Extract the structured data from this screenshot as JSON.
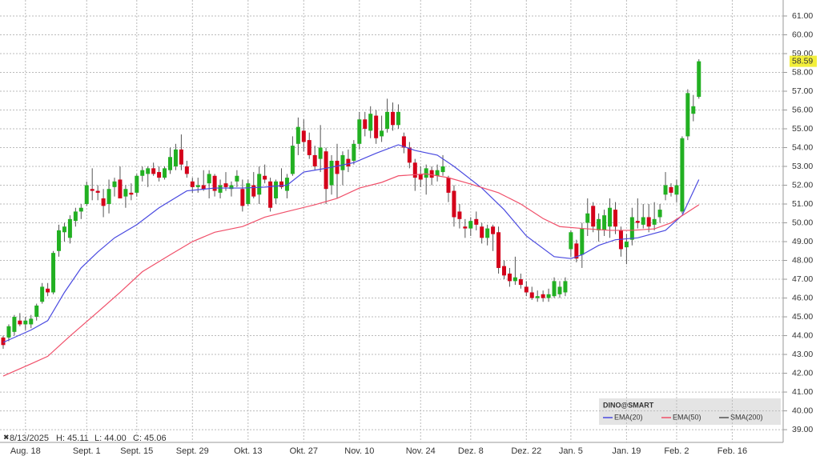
{
  "chart_data": {
    "type": "candlestick",
    "status": [
      "8/13/2025",
      "H: 45.11",
      "L: 44.00",
      "C: 45.06"
    ],
    "last_label": "58.59",
    "ylim": [
      38.45,
      61.85
    ],
    "yticks": [
      {
        "value": 39,
        "label": "39.00"
      },
      {
        "value": 40,
        "label": "40.00"
      },
      {
        "value": 41,
        "label": "41.00"
      },
      {
        "value": 42,
        "label": "42.00"
      },
      {
        "value": 43,
        "label": "43.00"
      },
      {
        "value": 44,
        "label": "44.00"
      },
      {
        "value": 45,
        "label": "45.00"
      },
      {
        "value": 46,
        "label": "46.00"
      },
      {
        "value": 47,
        "label": "47.00"
      },
      {
        "value": 48,
        "label": "48.00"
      },
      {
        "value": 49,
        "label": "49.00"
      },
      {
        "value": 50,
        "label": "50.00"
      },
      {
        "value": 51,
        "label": "51.00"
      },
      {
        "value": 52,
        "label": "52.00"
      },
      {
        "value": 53,
        "label": "53.00"
      },
      {
        "value": 54,
        "label": "54.00"
      },
      {
        "value": 55,
        "label": "55.00"
      },
      {
        "value": 56,
        "label": "56.00"
      },
      {
        "value": 57,
        "label": "57.00"
      },
      {
        "value": 58,
        "label": "58.00"
      },
      {
        "value": 59,
        "label": "59.00"
      },
      {
        "value": 60,
        "label": "60.00"
      },
      {
        "value": 61,
        "label": "61.00"
      }
    ],
    "xticks": [
      {
        "value": 4,
        "label": "Aug. 18"
      },
      {
        "value": 15,
        "label": "Sept. 1"
      },
      {
        "value": 24,
        "label": "Sept. 15"
      },
      {
        "value": 34,
        "label": "Sept. 29"
      },
      {
        "value": 44,
        "label": "Okt. 13"
      },
      {
        "value": 54,
        "label": "Okt. 27"
      },
      {
        "value": 64,
        "label": "Nov. 10"
      },
      {
        "value": 75,
        "label": "Nov. 24"
      },
      {
        "value": 84,
        "label": "Dez. 8"
      },
      {
        "value": 94,
        "label": "Dez. 22"
      },
      {
        "value": 102,
        "label": "Jan. 5"
      },
      {
        "value": 112,
        "label": "Jan. 19"
      },
      {
        "value": 121,
        "label": "Feb. 2"
      },
      {
        "value": 131,
        "label": "Feb. 16"
      }
    ],
    "grid": true,
    "up_color": "#22b022",
    "down_color": "#d4001a",
    "open": [
      43.9,
      43.9,
      44.2,
      44.8,
      44.6,
      44.6,
      45.0,
      45.8,
      46.5,
      46.3,
      48.5,
      49.5,
      49.2,
      50.1,
      50.6,
      51.0,
      51.8,
      51.7,
      51.3,
      51.0,
      51.9,
      52.3,
      51.4,
      51.6,
      51.6,
      52.5,
      52.6,
      52.9,
      52.7,
      52.4,
      52.8,
      53.0,
      53.9,
      53.0,
      52.2,
      51.9,
      52.0,
      52.1,
      52.5,
      51.6,
      52.1,
      51.8,
      52.2,
      51.8,
      51.0,
      52.0,
      51.5,
      52.5,
      52.2,
      51.3,
      52.2,
      51.7,
      52.6,
      54.2,
      54.9,
      54.4,
      53.6,
      53.4,
      53.8,
      52.0,
      53.3,
      52.8,
      53.4,
      53.3,
      54.2,
      55.5,
      54.9,
      55.7,
      54.6,
      55.0,
      55.9,
      55.2,
      54.6,
      54.0,
      53.2,
      52.6,
      52.4,
      52.8,
      52.5,
      52.7,
      52.4,
      51.7,
      50.6,
      49.8,
      49.7,
      50.2,
      49.8,
      49.2,
      49.8,
      49.5,
      47.7,
      47.3,
      46.9,
      47.0,
      46.6,
      46.3,
      46.0,
      46.2,
      46.0,
      46.1,
      46.2,
      46.3,
      48.6,
      48.9,
      48.3,
      50.0,
      50.9,
      49.6,
      49.6,
      49.8,
      50.7,
      49.6,
      48.7,
      49.1,
      50.1,
      49.9,
      50.3,
      49.9,
      50.3,
      51.5,
      51.9,
      51.5,
      50.6,
      54.6,
      55.8,
      56.7
    ],
    "high": [
      44.0,
      44.6,
      45.1,
      45.2,
      45.0,
      45.1,
      45.7,
      46.8,
      46.8,
      48.5,
      49.9,
      50.0,
      50.4,
      50.8,
      51.0,
      52.2,
      52.9,
      52.0,
      51.8,
      52.3,
      52.4,
      53.0,
      52.0,
      52.1,
      52.6,
      53.0,
      53.0,
      53.2,
      53.0,
      53.0,
      54.0,
      54.2,
      54.7,
      53.3,
      52.4,
      52.4,
      52.8,
      52.8,
      52.6,
      52.3,
      52.7,
      52.2,
      52.8,
      52.3,
      52.3,
      52.7,
      53.0,
      53.1,
      52.4,
      52.3,
      52.9,
      52.6,
      54.6,
      55.6,
      55.5,
      54.8,
      54.1,
      55.2,
      54.0,
      53.6,
      54.2,
      53.8,
      53.9,
      54.4,
      55.9,
      55.9,
      56.2,
      56.0,
      55.7,
      56.6,
      56.4,
      56.3,
      54.8,
      54.3,
      53.4,
      53.0,
      53.1,
      53.0,
      53.1,
      53.6,
      52.5,
      52.0,
      51.0,
      50.2,
      50.3,
      50.6,
      50.0,
      49.9,
      49.9,
      49.8,
      48.0,
      47.6,
      48.2,
      47.3,
      46.9,
      46.6,
      46.4,
      46.4,
      46.5,
      47.1,
      46.9,
      47.1,
      49.6,
      49.1,
      50.0,
      51.3,
      51.1,
      50.5,
      50.7,
      51.3,
      51.1,
      49.8,
      49.4,
      50.8,
      51.3,
      51.0,
      51.0,
      51.1,
      51.0,
      52.7,
      52.1,
      52.3,
      54.6,
      57.1,
      56.8,
      58.7
    ],
    "low": [
      43.3,
      43.7,
      44.0,
      44.5,
      44.3,
      44.4,
      44.8,
      45.7,
      46.1,
      46.2,
      48.2,
      49.0,
      48.9,
      49.8,
      50.2,
      50.9,
      51.2,
      51.2,
      50.3,
      50.5,
      51.4,
      51.5,
      50.8,
      51.2,
      51.4,
      52.2,
      51.9,
      52.5,
      52.2,
      52.3,
      52.6,
      52.8,
      52.8,
      52.4,
      51.6,
      51.6,
      51.7,
      51.3,
      51.4,
      51.3,
      51.7,
      51.4,
      51.9,
      50.6,
      50.9,
      51.3,
      51.0,
      52.1,
      50.6,
      51.0,
      51.8,
      51.3,
      52.5,
      53.6,
      53.8,
      53.4,
      52.8,
      52.7,
      51.0,
      51.5,
      51.3,
      52.0,
      52.7,
      53.1,
      53.9,
      54.6,
      54.5,
      54.2,
      54.3,
      54.8,
      54.9,
      55.0,
      53.7,
      52.9,
      51.7,
      51.9,
      51.5,
      52.0,
      52.2,
      52.5,
      51.1,
      49.8,
      49.7,
      49.2,
      49.3,
      49.6,
      48.9,
      48.8,
      48.5,
      47.3,
      47.0,
      46.6,
      46.7,
      46.5,
      46.1,
      45.9,
      45.8,
      45.8,
      45.8,
      46.0,
      46.0,
      46.1,
      48.2,
      47.9,
      47.6,
      49.3,
      49.5,
      49.0,
      49.3,
      49.2,
      49.4,
      48.2,
      47.8,
      48.8,
      49.7,
      49.7,
      49.5,
      49.6,
      50.0,
      51.2,
      51.4,
      51.1,
      50.5,
      54.4,
      55.4,
      56.6
    ],
    "close": [
      43.5,
      44.5,
      45.0,
      44.6,
      44.8,
      44.9,
      45.6,
      46.6,
      46.3,
      48.4,
      49.6,
      49.8,
      50.2,
      50.6,
      50.8,
      52.0,
      51.7,
      51.6,
      50.9,
      51.8,
      52.2,
      51.3,
      51.8,
      51.5,
      52.5,
      52.8,
      52.9,
      52.6,
      52.4,
      52.9,
      53.5,
      53.9,
      53.1,
      52.6,
      51.9,
      52.0,
      51.8,
      52.6,
      51.7,
      52.0,
      51.9,
      52.0,
      52.5,
      50.9,
      52.1,
      51.4,
      52.6,
      52.3,
      50.8,
      52.2,
      51.9,
      52.4,
      54.1,
      55.1,
      54.3,
      53.6,
      53.0,
      54.0,
      51.8,
      53.3,
      52.6,
      53.6,
      53.0,
      54.2,
      55.5,
      55.0,
      55.8,
      54.5,
      54.9,
      55.9,
      55.2,
      55.9,
      54.0,
      53.2,
      52.4,
      52.3,
      52.9,
      52.4,
      52.8,
      53.0,
      51.6,
      50.3,
      50.2,
      49.7,
      50.1,
      49.9,
      49.2,
      49.7,
      49.4,
      47.6,
      47.2,
      46.9,
      47.1,
      46.7,
      46.3,
      46.0,
      46.1,
      46.0,
      46.2,
      46.9,
      46.6,
      46.9,
      49.5,
      48.1,
      49.7,
      50.5,
      49.8,
      50.2,
      50.4,
      50.8,
      49.8,
      48.6,
      49.0,
      50.3,
      50.0,
      50.3,
      49.8,
      50.2,
      50.7,
      52.0,
      51.6,
      52.0,
      54.5,
      56.9,
      56.2,
      58.59
    ],
    "lines": [
      {
        "color": "#4a4ae0",
        "x": [
          0,
          5,
          8,
          11,
          14,
          17,
          20,
          24,
          28,
          33,
          38,
          43,
          47,
          51,
          54,
          58,
          63,
          67,
          71,
          74,
          78,
          81,
          86,
          90,
          94,
          99,
          102,
          104,
          107,
          110,
          114,
          119,
          122,
          125
        ],
        "values": [
          43.64,
          44.3,
          44.8,
          46.3,
          47.6,
          48.45,
          49.2,
          49.9,
          50.8,
          51.7,
          51.85,
          51.85,
          51.9,
          52.0,
          52.7,
          52.9,
          53.2,
          53.7,
          54.15,
          53.85,
          53.6,
          53.0,
          51.85,
          50.7,
          49.3,
          48.2,
          48.1,
          48.3,
          48.8,
          49.1,
          49.2,
          49.6,
          50.4,
          52.3
        ]
      },
      {
        "color": "#f0506a",
        "x": [
          0,
          5,
          8,
          12,
          17,
          21,
          25,
          30,
          34,
          38,
          43,
          47,
          51,
          56,
          60,
          64,
          68,
          71,
          76,
          80,
          84,
          89,
          93,
          97,
          100,
          104,
          109,
          113,
          117,
          120,
          125
        ],
        "values": [
          41.85,
          42.5,
          42.9,
          43.98,
          45.26,
          46.3,
          47.4,
          48.3,
          49.0,
          49.5,
          49.8,
          50.3,
          50.6,
          50.96,
          51.3,
          51.85,
          52.15,
          52.5,
          52.6,
          52.4,
          52.06,
          51.6,
          51.0,
          50.23,
          49.8,
          49.7,
          49.6,
          49.6,
          49.68,
          50.0,
          50.96
        ]
      }
    ],
    "legend": {
      "title": "DINO@SMART",
      "entries": [
        "EMA(20)",
        "EMA(50)",
        "SMA(200)"
      ],
      "colors": [
        "#4a4ae0",
        "#f0506a",
        "#555555"
      ]
    }
  }
}
